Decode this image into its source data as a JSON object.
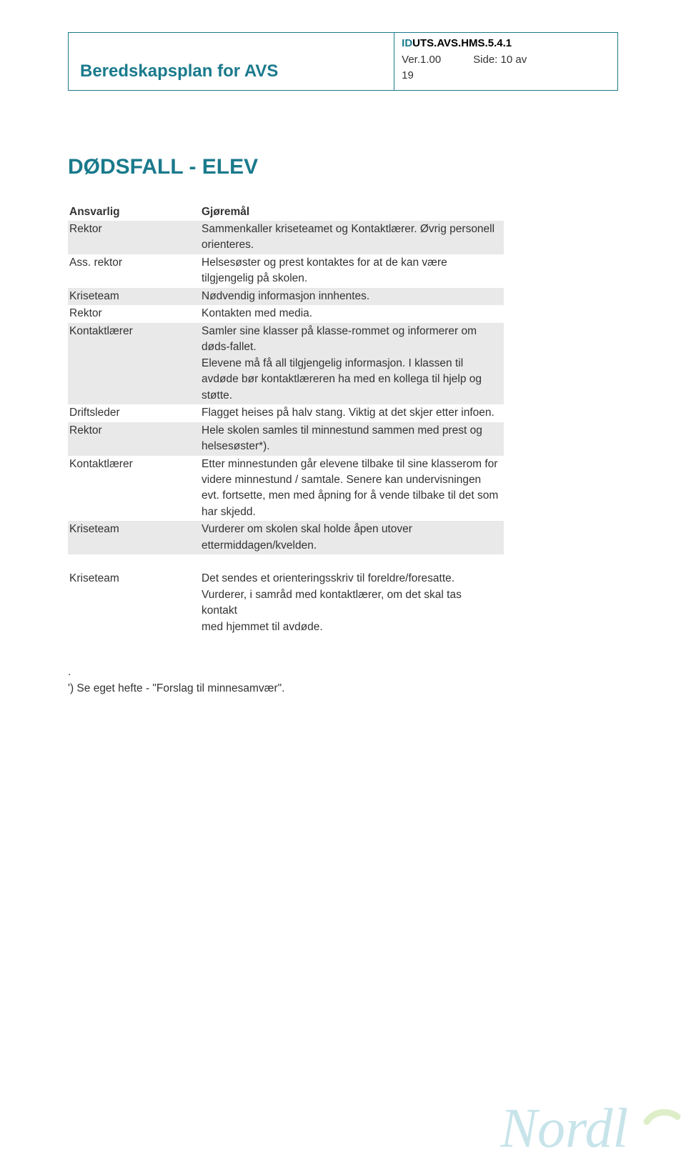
{
  "header": {
    "title": "Beredskapsplan for AVS",
    "id_prefix": "ID",
    "id_rest": "UTS.AVS.HMS.5.4.1",
    "version_label": "Ver.1.00",
    "page_label": "Side: 10 av",
    "page_total": "19"
  },
  "section": {
    "title": "DØDSFALL - ELEV"
  },
  "table": {
    "header": {
      "c1": "Ansvarlig",
      "c2": "Gjøremål"
    },
    "rows": [
      {
        "shade": true,
        "c1": "Rektor",
        "c2": "Sammenkaller kriseteamet og Kontaktlærer. Øvrig personell orienteres."
      },
      {
        "shade": false,
        "c1": "Ass. rektor",
        "c2": "Helsesøster og prest kontaktes for at de kan være tilgjengelig på skolen."
      },
      {
        "shade": true,
        "c1": "Kriseteam",
        "c2": "Nødvendig informasjon innhentes."
      },
      {
        "shade": false,
        "c1": "Rektor",
        "c2": "Kontakten med media."
      },
      {
        "shade": true,
        "c1": "Kontaktlærer",
        "c2": "Samler sine klasser på klasse-rommet og informerer om døds-fallet.\nElevene må få all tilgjengelig informasjon. I klassen til avdøde bør kontaktlæreren ha med en kollega til hjelp og støtte."
      },
      {
        "shade": false,
        "c1": "Driftsleder",
        "c2": "Flagget heises på halv stang. Viktig at det skjer etter infoen."
      },
      {
        "shade": true,
        "c1": "Rektor",
        "c2": "Hele skolen samles til minnestund sammen med prest og helsesøster*)."
      },
      {
        "shade": false,
        "c1": "Kontaktlærer",
        "c2": "Etter minnestunden går elevene tilbake til sine klasserom for videre minnestund / samtale. Senere kan undervisningen evt. fortsette, men med åpning for å vende tilbake til det som har skjedd."
      },
      {
        "shade": true,
        "c1": "Kriseteam",
        "c2": "Vurderer om skolen skal holde åpen utover ettermiddagen/kvelden."
      },
      {
        "shade": false,
        "c1": "Kriseteam",
        "c2": "Det sendes et orienteringsskriv til foreldre/foresatte.\nVurderer, i samråd med kontaktlærer, om det skal tas kontakt\nmed hjemmet til avdøde."
      }
    ],
    "gap_before_index": 9
  },
  "footnote": {
    "line1": ".",
    "line2": "') Se eget hefte - \"Forslag til minnesamvær\"."
  },
  "colors": {
    "accent": "#1a7a8c",
    "shade_bg": "#e9e9e9",
    "text": "#333333",
    "watermark": "#3aa0b5"
  }
}
